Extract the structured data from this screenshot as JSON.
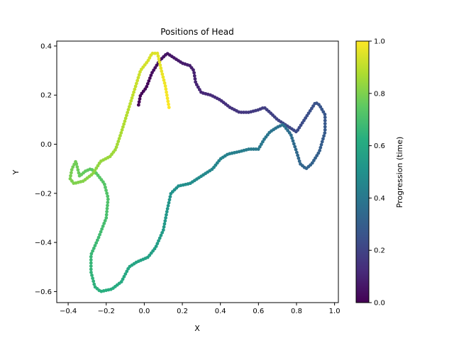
{
  "chart_data": {
    "type": "scatter",
    "title": "Positions of Head",
    "xlabel": "X",
    "ylabel": "Y",
    "xlim": [
      -0.46,
      1.02
    ],
    "ylim": [
      -0.645,
      0.42
    ],
    "xticks": [
      -0.4,
      -0.2,
      0.0,
      0.2,
      0.4,
      0.6,
      0.8,
      1.0
    ],
    "xtick_labels": [
      "−0.4",
      "−0.2",
      "0.0",
      "0.2",
      "0.4",
      "0.6",
      "0.8",
      "1.0"
    ],
    "yticks": [
      -0.6,
      -0.4,
      -0.2,
      0.0,
      0.2,
      0.4
    ],
    "ytick_labels": [
      "−0.6",
      "−0.4",
      "−0.2",
      "0.0",
      "0.2",
      "0.4"
    ],
    "grid": false,
    "colormap": "viridis",
    "colorbar": {
      "label": "Progression (time)",
      "range": [
        0.0,
        1.0
      ],
      "ticks": [
        0.0,
        0.2,
        0.4,
        0.6,
        0.8,
        1.0
      ],
      "tick_labels": [
        "0.0",
        "0.2",
        "0.4",
        "0.6",
        "0.8",
        "1.0"
      ]
    },
    "path_waypoints": [
      [
        -0.03,
        0.16
      ],
      [
        -0.02,
        0.2
      ],
      [
        0.01,
        0.23
      ],
      [
        0.04,
        0.29
      ],
      [
        0.08,
        0.34
      ],
      [
        0.12,
        0.37
      ],
      [
        0.14,
        0.36
      ],
      [
        0.16,
        0.35
      ],
      [
        0.2,
        0.33
      ],
      [
        0.24,
        0.32
      ],
      [
        0.26,
        0.3
      ],
      [
        0.27,
        0.25
      ],
      [
        0.3,
        0.21
      ],
      [
        0.35,
        0.2
      ],
      [
        0.4,
        0.18
      ],
      [
        0.45,
        0.15
      ],
      [
        0.5,
        0.13
      ],
      [
        0.55,
        0.13
      ],
      [
        0.6,
        0.14
      ],
      [
        0.63,
        0.15
      ],
      [
        0.66,
        0.13
      ],
      [
        0.7,
        0.1
      ],
      [
        0.76,
        0.07
      ],
      [
        0.8,
        0.05
      ],
      [
        0.9,
        0.17
      ],
      [
        0.92,
        0.16
      ],
      [
        0.95,
        0.12
      ],
      [
        0.95,
        0.05
      ],
      [
        0.92,
        -0.03
      ],
      [
        0.88,
        -0.08
      ],
      [
        0.85,
        -0.1
      ],
      [
        0.82,
        -0.08
      ],
      [
        0.8,
        -0.03
      ],
      [
        0.77,
        0.04
      ],
      [
        0.73,
        0.08
      ],
      [
        0.7,
        0.07
      ],
      [
        0.66,
        0.05
      ],
      [
        0.63,
        0.02
      ],
      [
        0.6,
        -0.02
      ],
      [
        0.55,
        -0.02
      ],
      [
        0.5,
        -0.03
      ],
      [
        0.44,
        -0.04
      ],
      [
        0.4,
        -0.06
      ],
      [
        0.36,
        -0.1
      ],
      [
        0.3,
        -0.13
      ],
      [
        0.24,
        -0.16
      ],
      [
        0.18,
        -0.17
      ],
      [
        0.14,
        -0.2
      ],
      [
        0.12,
        -0.27
      ],
      [
        0.1,
        -0.35
      ],
      [
        0.06,
        -0.42
      ],
      [
        0.02,
        -0.46
      ],
      [
        -0.04,
        -0.48
      ],
      [
        -0.08,
        -0.5
      ],
      [
        -0.12,
        -0.56
      ],
      [
        -0.17,
        -0.59
      ],
      [
        -0.23,
        -0.6
      ],
      [
        -0.26,
        -0.58
      ],
      [
        -0.28,
        -0.52
      ],
      [
        -0.28,
        -0.45
      ],
      [
        -0.24,
        -0.38
      ],
      [
        -0.2,
        -0.3
      ],
      [
        -0.19,
        -0.22
      ],
      [
        -0.21,
        -0.16
      ],
      [
        -0.25,
        -0.12
      ],
      [
        -0.28,
        -0.1
      ],
      [
        -0.31,
        -0.11
      ],
      [
        -0.34,
        -0.13
      ],
      [
        -0.36,
        -0.07
      ],
      [
        -0.38,
        -0.1
      ],
      [
        -0.39,
        -0.14
      ],
      [
        -0.37,
        -0.16
      ],
      [
        -0.32,
        -0.15
      ],
      [
        -0.27,
        -0.12
      ],
      [
        -0.23,
        -0.07
      ],
      [
        -0.18,
        -0.05
      ],
      [
        -0.15,
        -0.02
      ],
      [
        -0.12,
        0.05
      ],
      [
        -0.1,
        0.1
      ],
      [
        -0.08,
        0.15
      ],
      [
        -0.06,
        0.2
      ],
      [
        -0.04,
        0.25
      ],
      [
        -0.02,
        0.3
      ],
      [
        0.02,
        0.34
      ],
      [
        0.04,
        0.37
      ],
      [
        0.07,
        0.37
      ],
      [
        0.09,
        0.3
      ],
      [
        0.11,
        0.24
      ],
      [
        0.13,
        0.15
      ]
    ]
  }
}
